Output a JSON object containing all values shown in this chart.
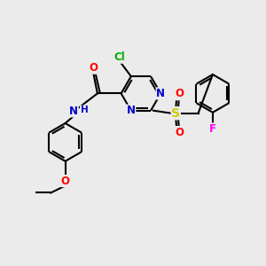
{
  "bg_color": "#ebebeb",
  "bond_color": "#000000",
  "atom_colors": {
    "N": "#0000cc",
    "O": "#ff0000",
    "Cl": "#00aa00",
    "S": "#cccc00",
    "F": "#ff00ff",
    "C": "#000000",
    "H": "#0000cc"
  },
  "figsize": [
    3.0,
    3.0
  ],
  "dpi": 100
}
